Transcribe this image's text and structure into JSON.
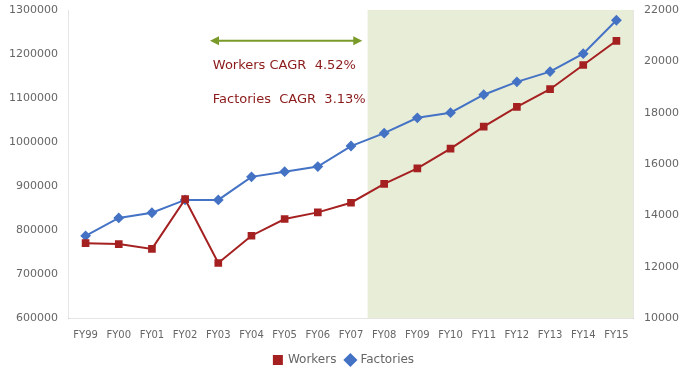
{
  "chart_data": {
    "type": "line",
    "categories": [
      "FY99",
      "FY00",
      "FY01",
      "FY02",
      "FY03",
      "FY04",
      "FY05",
      "FY06",
      "FY07",
      "FY08",
      "FY09",
      "FY10",
      "FY11",
      "FY12",
      "FY13",
      "FY14",
      "FY15"
    ],
    "series": [
      {
        "name": "Workers",
        "color": "#A52020",
        "marker": "square",
        "values": [
          770000,
          768000,
          757000,
          870000,
          725000,
          787000,
          825000,
          840000,
          862000,
          905000,
          940000,
          985000,
          1035000,
          1080000,
          1120000,
          1175000,
          1230000
        ]
      },
      {
        "name": "Factories",
        "color": "#4472C4",
        "marker": "diamond",
        "axis": "y2",
        "values": [
          13200,
          13900,
          14100,
          14600,
          14600,
          15500,
          15700,
          15900,
          16700,
          17200,
          17800,
          18000,
          18700,
          19200,
          19600,
          20300,
          21600
        ]
      }
    ],
    "ylim": [
      600000,
      1300000
    ],
    "yticks": [
      600000,
      700000,
      800000,
      900000,
      1000000,
      1100000,
      1200000,
      1300000
    ],
    "y2lim": [
      10000,
      22000
    ],
    "y2ticks": [
      10000,
      12000,
      14000,
      16000,
      18000,
      20000,
      22000
    ],
    "span": {
      "from": "FY08",
      "to": "FY15",
      "color": "#e8edd8"
    },
    "arrow": {
      "color": "#7a9a2a"
    },
    "annotations": [
      {
        "text": "Workers CAGR  4.52%",
        "color": "#8B1A1A"
      },
      {
        "text": "Factories  CAGR  3.13%",
        "color": "#8B1A1A"
      }
    ],
    "grid": false,
    "legend": "bottom"
  }
}
